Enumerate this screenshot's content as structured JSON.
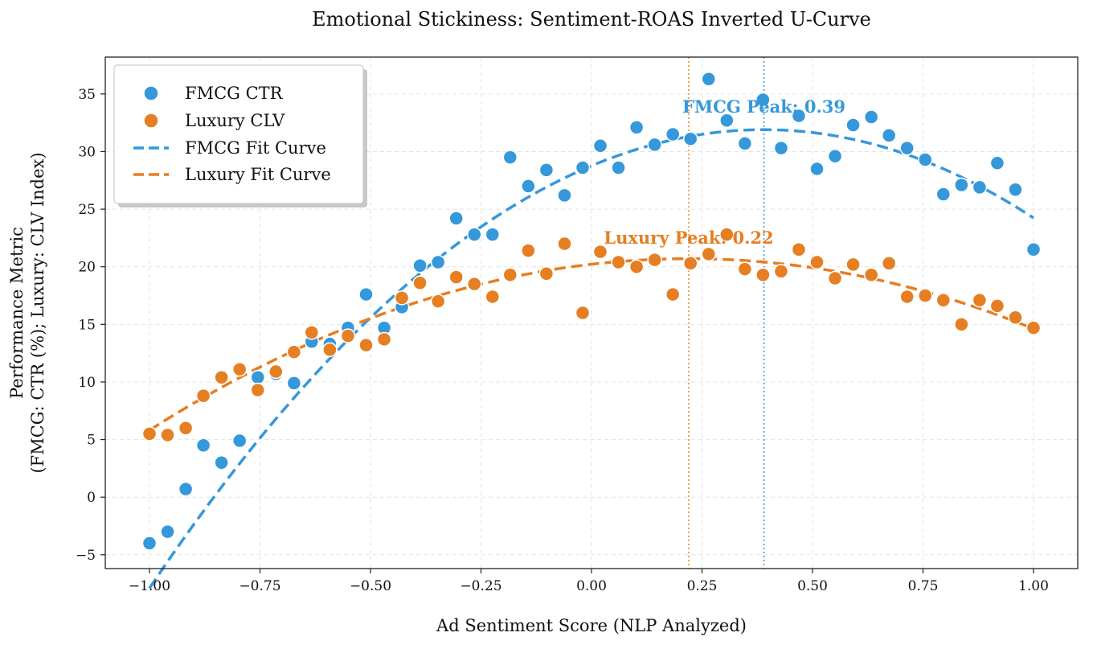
{
  "chart_data": {
    "type": "scatter",
    "title": "Emotional Stickiness: Sentiment-ROAS Inverted U-Curve",
    "xlabel": "Ad Sentiment Score (NLP Analyzed)",
    "ylabel_line1": "Performance Metric",
    "ylabel_line2": "(FMCG: CTR (%); Luxury: CLV Index)",
    "xlim": [
      -1.1,
      1.1
    ],
    "ylim": [
      -6.2,
      38.2
    ],
    "xticks": [
      -1.0,
      -0.75,
      -0.5,
      -0.25,
      0.0,
      0.25,
      0.5,
      0.75,
      1.0
    ],
    "xtick_labels": [
      "−1.00",
      "−0.75",
      "−0.50",
      "−0.25",
      "0.00",
      "0.25",
      "0.50",
      "0.75",
      "1.00"
    ],
    "yticks": [
      -5,
      0,
      5,
      10,
      15,
      20,
      25,
      30,
      35
    ],
    "ytick_labels": [
      "−5",
      "0",
      "5",
      "10",
      "15",
      "20",
      "25",
      "30",
      "35"
    ],
    "grid": true,
    "legend_position": "top-left",
    "series": [
      {
        "name": "FMCG CTR",
        "kind": "scatter",
        "color": "#3498db",
        "x": [
          -1.0,
          -0.959,
          -0.918,
          -0.878,
          -0.837,
          -0.796,
          -0.755,
          -0.714,
          -0.673,
          -0.633,
          -0.592,
          -0.551,
          -0.51,
          -0.469,
          -0.429,
          -0.388,
          -0.347,
          -0.306,
          -0.265,
          -0.224,
          -0.184,
          -0.143,
          -0.102,
          -0.061,
          -0.02,
          0.02,
          0.061,
          0.102,
          0.143,
          0.184,
          0.224,
          0.265,
          0.306,
          0.347,
          0.388,
          0.429,
          0.469,
          0.51,
          0.551,
          0.592,
          0.633,
          0.673,
          0.714,
          0.755,
          0.796,
          0.837,
          0.878,
          0.918,
          0.959,
          1.0
        ],
        "y": [
          -4.0,
          -3.0,
          0.7,
          4.5,
          3.0,
          4.9,
          10.4,
          10.7,
          9.9,
          13.5,
          13.3,
          14.7,
          17.6,
          14.7,
          16.5,
          20.1,
          20.4,
          24.2,
          22.8,
          22.8,
          29.5,
          27.0,
          28.4,
          26.2,
          28.6,
          30.5,
          28.6,
          32.1,
          30.6,
          31.5,
          31.1,
          36.3,
          32.7,
          30.7,
          34.5,
          30.3,
          33.1,
          28.5,
          29.6,
          32.3,
          33.0,
          31.4,
          30.3,
          29.3,
          26.3,
          27.1,
          26.9,
          29.0,
          26.7,
          21.5
        ]
      },
      {
        "name": "Luxury CLV",
        "kind": "scatter",
        "color": "#e67e22",
        "x": [
          -1.0,
          -0.959,
          -0.918,
          -0.878,
          -0.837,
          -0.796,
          -0.755,
          -0.714,
          -0.673,
          -0.633,
          -0.592,
          -0.551,
          -0.51,
          -0.469,
          -0.429,
          -0.388,
          -0.347,
          -0.306,
          -0.265,
          -0.224,
          -0.184,
          -0.143,
          -0.102,
          -0.061,
          -0.02,
          0.02,
          0.061,
          0.102,
          0.143,
          0.184,
          0.224,
          0.265,
          0.306,
          0.347,
          0.388,
          0.429,
          0.469,
          0.51,
          0.551,
          0.592,
          0.633,
          0.673,
          0.714,
          0.755,
          0.796,
          0.837,
          0.878,
          0.918,
          0.959,
          1.0
        ],
        "y": [
          5.5,
          5.4,
          6.0,
          8.8,
          10.4,
          11.1,
          9.3,
          10.9,
          12.6,
          14.3,
          12.8,
          14.0,
          13.2,
          13.7,
          17.3,
          18.6,
          17.0,
          19.1,
          18.5,
          17.4,
          19.3,
          21.4,
          19.4,
          22.0,
          16.0,
          21.3,
          20.4,
          20.0,
          20.6,
          17.6,
          20.3,
          21.1,
          22.8,
          19.8,
          19.3,
          19.6,
          21.5,
          20.4,
          19.0,
          20.2,
          19.3,
          20.3,
          17.4,
          17.5,
          17.1,
          15.0,
          17.1,
          16.6,
          15.6,
          14.7
        ]
      },
      {
        "name": "FMCG Fit Curve",
        "kind": "line",
        "color": "#3498db",
        "dash": true,
        "peak_x": 0.39,
        "peak_y": 31.9,
        "curvature": 20.6,
        "x_range": [
          -1.0,
          1.0
        ]
      },
      {
        "name": "Luxury Fit Curve",
        "kind": "line",
        "color": "#e67e22",
        "dash": true,
        "peak_x": 0.22,
        "peak_y": 20.7,
        "curvature": 10.0,
        "x_range": [
          -1.0,
          1.0
        ]
      }
    ],
    "annotations": [
      {
        "text": "FMCG Peak: 0.39",
        "x": 0.39,
        "y": 33.4,
        "color": "#3498db",
        "vline_color": "#5dade2"
      },
      {
        "text": "Luxury Peak: 0.22",
        "x": 0.22,
        "y": 22.0,
        "color": "#e67e22",
        "vline_color": "#f0a35e"
      }
    ]
  }
}
